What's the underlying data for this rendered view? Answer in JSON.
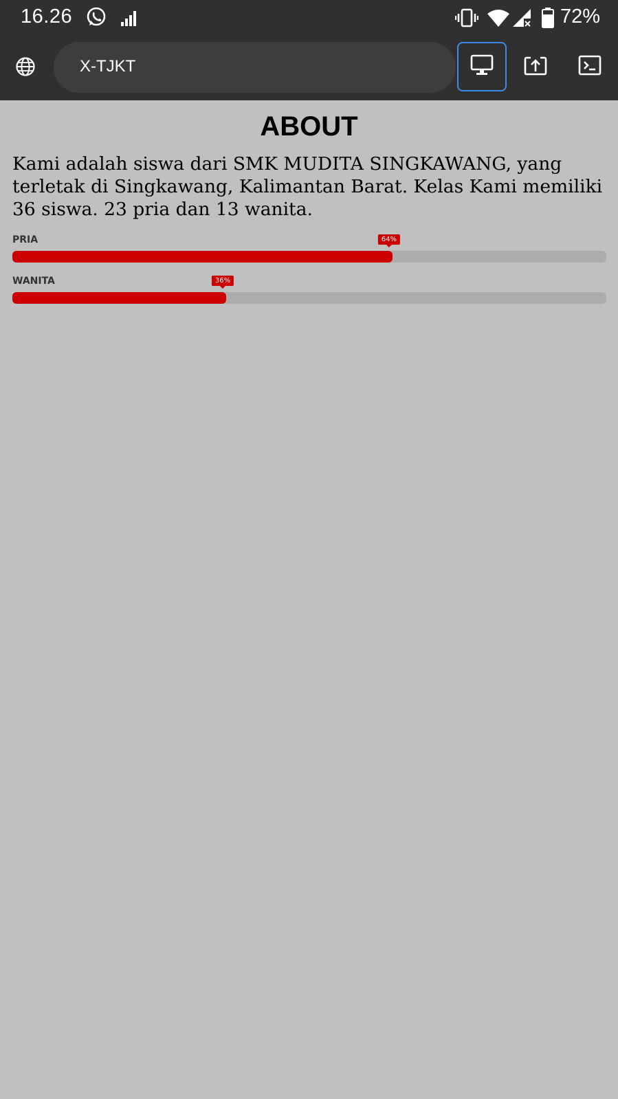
{
  "status_bar": {
    "time": "16.26",
    "battery": "72%",
    "icons": [
      "whatsapp-icon",
      "signal-icon",
      "vibrate-icon",
      "wifi-icon",
      "no-signal-icon",
      "battery-icon"
    ]
  },
  "toolbar": {
    "url": "X-TJKT",
    "icons": [
      "globe-icon",
      "desktop-icon",
      "open-external-icon",
      "terminal-icon"
    ],
    "accent": "#3b8be8"
  },
  "about": {
    "title": "ABOUT",
    "text": "Kami adalah siswa dari SMK MUDITA SINGKAWANG, yang terletak di Singkawang, Kalimantan Barat. Kelas Kami memiliki 36 siswa. 23 pria dan 13 wanita."
  },
  "skills": [
    {
      "label": "PRIA",
      "percent": 64,
      "percent_label": "64%"
    },
    {
      "label": "WANITA",
      "percent": 36,
      "percent_label": "36%"
    }
  ],
  "colors": {
    "bar_fill": "#cc0000",
    "bar_track": "#acacac",
    "background": "#c0c0c0",
    "chrome": "#303030"
  }
}
